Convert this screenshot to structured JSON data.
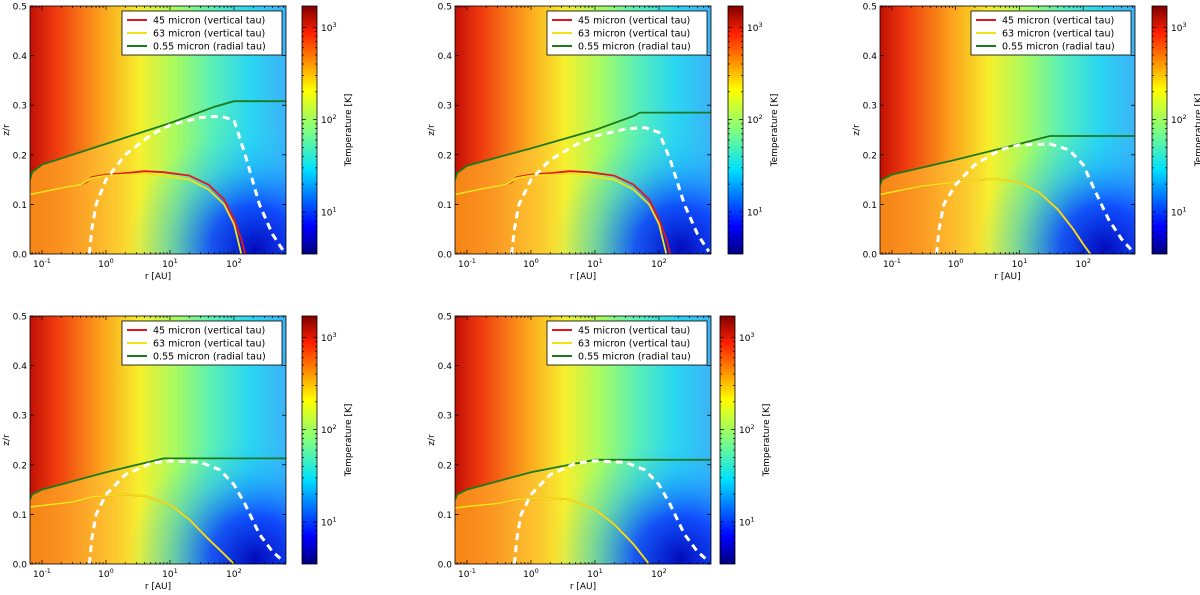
{
  "chart_data": {
    "type": "heatmap",
    "description_shared": {
      "xlabel": "r [AU]",
      "ylabel": "z/r",
      "colorbar_label": "Temperature [K]",
      "x_scale": "log",
      "xlim": [
        0.065,
        650
      ],
      "ylim": [
        0,
        0.5
      ],
      "x_ticks": [
        {
          "value": 0.1,
          "base": "10",
          "exp": "-1"
        },
        {
          "value": 1,
          "base": "10",
          "exp": "0"
        },
        {
          "value": 10,
          "base": "10",
          "exp": "1"
        },
        {
          "value": 100,
          "base": "10",
          "exp": "2"
        }
      ],
      "y_ticks": [
        "0.0",
        "0.1",
        "0.2",
        "0.3",
        "0.4",
        "0.5"
      ],
      "colorbar_range": [
        3.5,
        1700
      ],
      "colorbar_ticks": [
        {
          "value": 10,
          "base": "10",
          "exp": "1"
        },
        {
          "value": 100,
          "base": "10",
          "exp": "2"
        },
        {
          "value": 1000,
          "base": "10",
          "exp": "3"
        }
      ],
      "legend": [
        {
          "label": "45 micron (vertical tau)",
          "color": "#e8141c"
        },
        {
          "label": "63 micron (vertical tau)",
          "color": "#f2e21a"
        },
        {
          "label": "0.55 micron (radial tau)",
          "color": "#1c7a1c"
        }
      ]
    },
    "panels": [
      {
        "name": "panel-1",
        "series": [
          {
            "name": "45 micron (vertical tau)",
            "x": [
              0.065,
              0.1,
              0.2,
              0.4,
              0.5,
              0.6,
              1,
              2,
              4,
              8,
              20,
              40,
              70,
              100,
              130,
              150
            ],
            "y": [
              0.12,
              0.125,
              0.133,
              0.14,
              0.145,
              0.155,
              0.16,
              0.163,
              0.167,
              0.165,
              0.158,
              0.14,
              0.11,
              0.07,
              0.03,
              0.0
            ]
          },
          {
            "name": "63 micron (vertical tau)",
            "x": [
              0.065,
              0.1,
              0.2,
              0.4,
              0.6,
              1,
              2,
              4,
              8,
              20,
              40,
              70,
              100,
              130
            ],
            "y": [
              0.12,
              0.125,
              0.133,
              0.14,
              0.153,
              0.158,
              0.16,
              0.162,
              0.158,
              0.15,
              0.13,
              0.1,
              0.06,
              0.0
            ]
          },
          {
            "name": "0.55 micron (radial tau)",
            "x": [
              0.065,
              0.07,
              0.1,
              1,
              10,
              50,
              100,
              650
            ],
            "y": [
              0.15,
              0.165,
              0.18,
              0.222,
              0.264,
              0.297,
              0.308,
              0.308
            ]
          },
          {
            "name": "tau-boundary-dashed",
            "x": [
              0.55,
              0.6,
              0.7,
              1,
              2,
              5,
              10,
              30,
              60,
              100,
              150,
              250,
              400,
              600
            ],
            "y": [
              0.0,
              0.05,
              0.1,
              0.15,
              0.2,
              0.24,
              0.26,
              0.275,
              0.278,
              0.27,
              0.2,
              0.1,
              0.04,
              0.005
            ]
          }
        ]
      },
      {
        "name": "panel-2",
        "series": [
          {
            "name": "45 micron (vertical tau)",
            "x": [
              0.065,
              0.1,
              0.2,
              0.4,
              0.5,
              0.6,
              1,
              2,
              4,
              8,
              20,
              40,
              70,
              100,
              130,
              150
            ],
            "y": [
              0.12,
              0.125,
              0.133,
              0.14,
              0.145,
              0.155,
              0.16,
              0.163,
              0.167,
              0.165,
              0.158,
              0.14,
              0.11,
              0.07,
              0.03,
              0.0
            ]
          },
          {
            "name": "63 micron (vertical tau)",
            "x": [
              0.065,
              0.1,
              0.2,
              0.4,
              0.6,
              1,
              2,
              4,
              8,
              20,
              40,
              70,
              100,
              130
            ],
            "y": [
              0.12,
              0.125,
              0.133,
              0.14,
              0.153,
              0.158,
              0.16,
              0.162,
              0.158,
              0.15,
              0.13,
              0.1,
              0.06,
              0.0
            ]
          },
          {
            "name": "0.55 micron (radial tau)",
            "x": [
              0.065,
              0.07,
              0.1,
              1,
              10,
              40,
              50,
              650
            ],
            "y": [
              0.15,
              0.163,
              0.178,
              0.213,
              0.25,
              0.278,
              0.285,
              0.285
            ]
          },
          {
            "name": "tau-boundary-dashed",
            "x": [
              0.5,
              0.55,
              0.65,
              1,
              2,
              5,
              10,
              30,
              60,
              100,
              150,
              250,
              400,
              600
            ],
            "y": [
              0.0,
              0.05,
              0.1,
              0.15,
              0.19,
              0.22,
              0.238,
              0.252,
              0.255,
              0.245,
              0.19,
              0.1,
              0.04,
              0.005
            ]
          }
        ]
      },
      {
        "name": "panel-3",
        "series": [
          {
            "name": "45 micron (vertical tau)",
            "x": [
              0.065,
              0.1,
              0.3,
              1,
              3,
              5,
              10,
              20,
              40,
              70,
              100,
              130
            ],
            "y": [
              0.12,
              0.125,
              0.137,
              0.145,
              0.15,
              0.15,
              0.145,
              0.125,
              0.09,
              0.05,
              0.02,
              0.0
            ]
          },
          {
            "name": "63 micron (vertical tau)",
            "x": [
              0.065,
              0.1,
              0.3,
              1,
              3,
              5,
              10,
              20,
              40,
              70,
              100,
              130
            ],
            "y": [
              0.12,
              0.125,
              0.137,
              0.145,
              0.15,
              0.15,
              0.145,
              0.125,
              0.09,
              0.05,
              0.02,
              0.0
            ]
          },
          {
            "name": "0.55 micron (radial tau)",
            "x": [
              0.065,
              0.07,
              0.1,
              1,
              10,
              30,
              650
            ],
            "y": [
              0.14,
              0.15,
              0.16,
              0.19,
              0.222,
              0.238,
              0.238
            ]
          },
          {
            "name": "tau-boundary-dashed",
            "x": [
              0.5,
              0.55,
              0.65,
              1,
              2,
              5,
              10,
              30,
              60,
              100,
              150,
              250,
              400,
              600
            ],
            "y": [
              0.0,
              0.05,
              0.1,
              0.14,
              0.18,
              0.21,
              0.22,
              0.222,
              0.21,
              0.18,
              0.13,
              0.07,
              0.03,
              0.005
            ]
          }
        ]
      },
      {
        "name": "panel-4",
        "series": [
          {
            "name": "45 micron (vertical tau)",
            "x": [
              0.065,
              0.1,
              0.3,
              0.6,
              1,
              2,
              4,
              10,
              20,
              40,
              70,
              100
            ],
            "y": [
              0.115,
              0.118,
              0.125,
              0.135,
              0.138,
              0.14,
              0.137,
              0.12,
              0.09,
              0.05,
              0.02,
              0.0
            ]
          },
          {
            "name": "63 micron (vertical tau)",
            "x": [
              0.065,
              0.1,
              0.3,
              0.6,
              1,
              2,
              4,
              10,
              20,
              40,
              70,
              100
            ],
            "y": [
              0.115,
              0.118,
              0.125,
              0.135,
              0.138,
              0.14,
              0.137,
              0.12,
              0.09,
              0.05,
              0.02,
              0.0
            ]
          },
          {
            "name": "0.55 micron (radial tau)",
            "x": [
              0.065,
              0.07,
              0.1,
              1,
              8,
              650
            ],
            "y": [
              0.13,
              0.14,
              0.15,
              0.185,
              0.213,
              0.213
            ]
          },
          {
            "name": "tau-boundary-dashed",
            "x": [
              0.55,
              0.6,
              0.7,
              1,
              2,
              5,
              10,
              30,
              60,
              100,
              150,
              250,
              400,
              600
            ],
            "y": [
              0.0,
              0.05,
              0.1,
              0.14,
              0.18,
              0.203,
              0.208,
              0.205,
              0.19,
              0.16,
              0.12,
              0.06,
              0.025,
              0.005
            ]
          }
        ]
      },
      {
        "name": "panel-5",
        "series": [
          {
            "name": "45 micron (vertical tau)",
            "x": [
              0.065,
              0.1,
              0.3,
              0.6,
              1,
              2,
              4,
              10,
              20,
              40,
              70
            ],
            "y": [
              0.113,
              0.116,
              0.122,
              0.13,
              0.132,
              0.133,
              0.13,
              0.11,
              0.08,
              0.04,
              0.0
            ]
          },
          {
            "name": "63 micron (vertical tau)",
            "x": [
              0.065,
              0.1,
              0.3,
              0.6,
              1,
              2,
              4,
              10,
              20,
              40,
              70
            ],
            "y": [
              0.113,
              0.116,
              0.122,
              0.13,
              0.132,
              0.133,
              0.13,
              0.11,
              0.08,
              0.04,
              0.0
            ]
          },
          {
            "name": "0.55 micron (radial tau)",
            "x": [
              0.065,
              0.07,
              0.1,
              1,
              10,
              650
            ],
            "y": [
              0.13,
              0.14,
              0.15,
              0.185,
              0.21,
              0.21
            ]
          },
          {
            "name": "tau-boundary-dashed",
            "x": [
              0.55,
              0.6,
              0.7,
              1,
              2,
              5,
              10,
              30,
              60,
              100,
              150,
              250,
              400,
              600
            ],
            "y": [
              0.0,
              0.05,
              0.1,
              0.14,
              0.18,
              0.203,
              0.208,
              0.205,
              0.19,
              0.16,
              0.12,
              0.06,
              0.025,
              0.005
            ]
          }
        ]
      }
    ]
  }
}
